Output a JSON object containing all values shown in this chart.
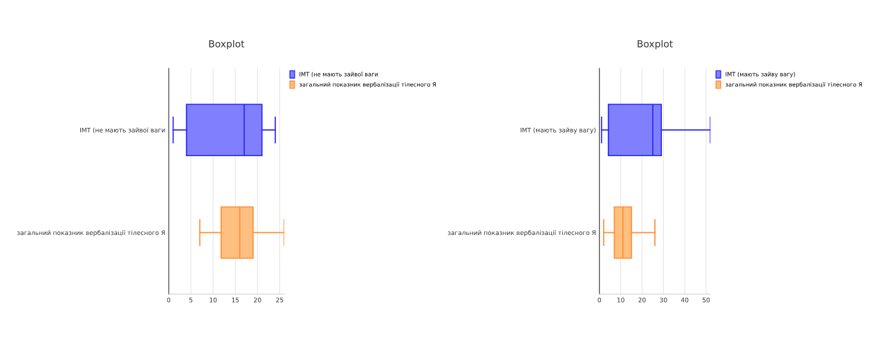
{
  "chart_data": [
    {
      "type": "box",
      "title": "Boxplot",
      "orientation": "horizontal",
      "categories": [
        "ІМТ (не мають зайвої ваги",
        "загальний показник вербалізації тілесного Я"
      ],
      "series": [
        {
          "name": "ІМТ (не мають зайвої ваги",
          "color": "#8080ff",
          "boxes": [
            {
              "low": 1,
              "q1": 4,
              "median": 17,
              "q3": 21,
              "high": 24
            },
            null
          ]
        },
        {
          "name": "загальний показник вербалізації тілесного Я",
          "color": "#ffbf80",
          "boxes": [
            null,
            {
              "low": 7,
              "q1": 11.8,
              "median": 16,
              "q3": 19,
              "high": 26
            }
          ]
        }
      ],
      "xlim": [
        0,
        26
      ],
      "xticks": [
        0,
        5,
        10,
        15,
        20,
        25
      ],
      "grid": "x",
      "legend": "right"
    },
    {
      "type": "box",
      "title": "Boxplot",
      "orientation": "horizontal",
      "categories": [
        "ІМТ (мають зайву вагу)",
        "загальний показник вербалізації тілесного Я"
      ],
      "series": [
        {
          "name": "ІМТ (мають зайву вагу)",
          "color": "#8080ff",
          "boxes": [
            {
              "low": 1,
              "q1": 4.2,
              "median": 25,
              "q3": 29,
              "high": 52
            },
            null
          ]
        },
        {
          "name": "загальний показник вербалізації тілесного Я",
          "color": "#ffbf80",
          "boxes": [
            null,
            {
              "low": 2,
              "q1": 7,
              "median": 11,
              "q3": 15,
              "high": 26
            }
          ]
        }
      ],
      "xlim": [
        0,
        52
      ],
      "xticks": [
        0,
        10,
        20,
        30,
        40,
        50
      ],
      "grid": "x",
      "legend": "right"
    }
  ]
}
